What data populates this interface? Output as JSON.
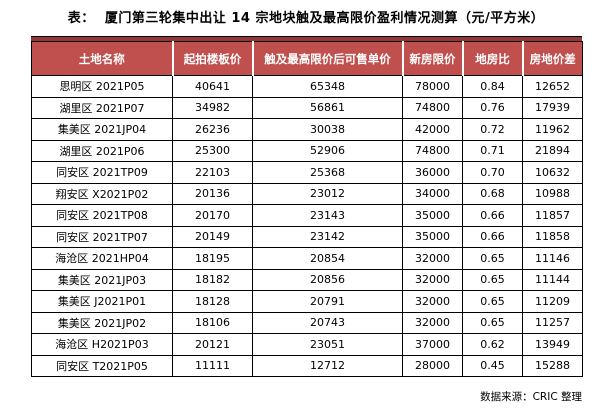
{
  "title": "表：  厦门第三轮集中出让 14 宗地块触及最高限价盈利情况测算（元/平方米）",
  "table": {
    "headers": [
      "土地名称",
      "起拍楼板价",
      "触及最高限价后可售单价",
      "新房限价",
      "地房比",
      "房地价差"
    ],
    "rows": [
      [
        "思明区 2021P05",
        "40641",
        "65348",
        "78000",
        "0.84",
        "12652"
      ],
      [
        "湖里区 2021P07",
        "34982",
        "56861",
        "74800",
        "0.76",
        "17939"
      ],
      [
        "集美区 2021JP04",
        "26236",
        "30038",
        "42000",
        "0.72",
        "11962"
      ],
      [
        "湖里区 2021P06",
        "25300",
        "52906",
        "74800",
        "0.71",
        "21894"
      ],
      [
        "同安区 2021TP09",
        "22103",
        "25368",
        "36000",
        "0.70",
        "10632"
      ],
      [
        "翔安区 X2021P02",
        "20136",
        "23012",
        "34000",
        "0.68",
        "10988"
      ],
      [
        "同安区 2021TP08",
        "20170",
        "23143",
        "35000",
        "0.66",
        "11857"
      ],
      [
        "同安区 2021TP07",
        "20149",
        "23142",
        "35000",
        "0.66",
        "11858"
      ],
      [
        "海沧区 2021HP04",
        "18195",
        "20854",
        "32000",
        "0.65",
        "11146"
      ],
      [
        "集美区 2021JP03",
        "18182",
        "20856",
        "32000",
        "0.65",
        "11144"
      ],
      [
        "集美区 J2021P01",
        "18128",
        "20791",
        "32000",
        "0.65",
        "11209"
      ],
      [
        "集美区 2021JP02",
        "18106",
        "20743",
        "32000",
        "0.65",
        "11257"
      ],
      [
        "海沧区 H2021P03",
        "20121",
        "23051",
        "37000",
        "0.62",
        "13949"
      ],
      [
        "同安区 T2021P05",
        "11111",
        "12712",
        "28000",
        "0.45",
        "15288"
      ]
    ]
  },
  "footer": {
    "source_label": "数据来源：CRIC 整理"
  },
  "colors": {
    "header_bg": "#C0504D",
    "header_text": "#FFFFFF",
    "header_top_band": "#953735",
    "table_border": "#000000",
    "body_text": "#000000",
    "page_bg": "#FFFFFF"
  }
}
